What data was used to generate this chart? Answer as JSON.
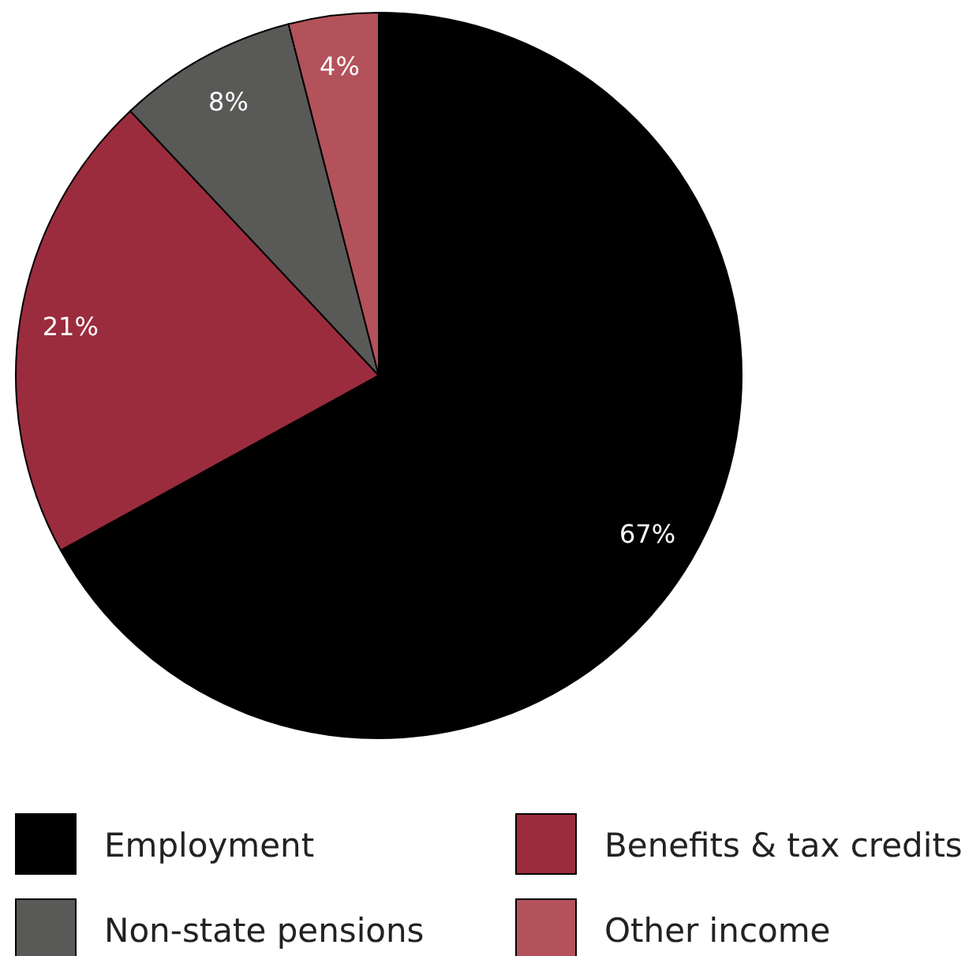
{
  "chart_data": {
    "type": "pie",
    "categories": [
      "Employment",
      "Benefits & tax credits",
      "Non-state pensions",
      "Other income"
    ],
    "values": [
      67,
      21,
      8,
      4
    ],
    "colors": [
      "#000000",
      "#9b2c3d",
      "#595957",
      "#b3525b"
    ],
    "value_labels": [
      "67%",
      "21%",
      "8%",
      "4%"
    ],
    "legend": "bottom"
  }
}
